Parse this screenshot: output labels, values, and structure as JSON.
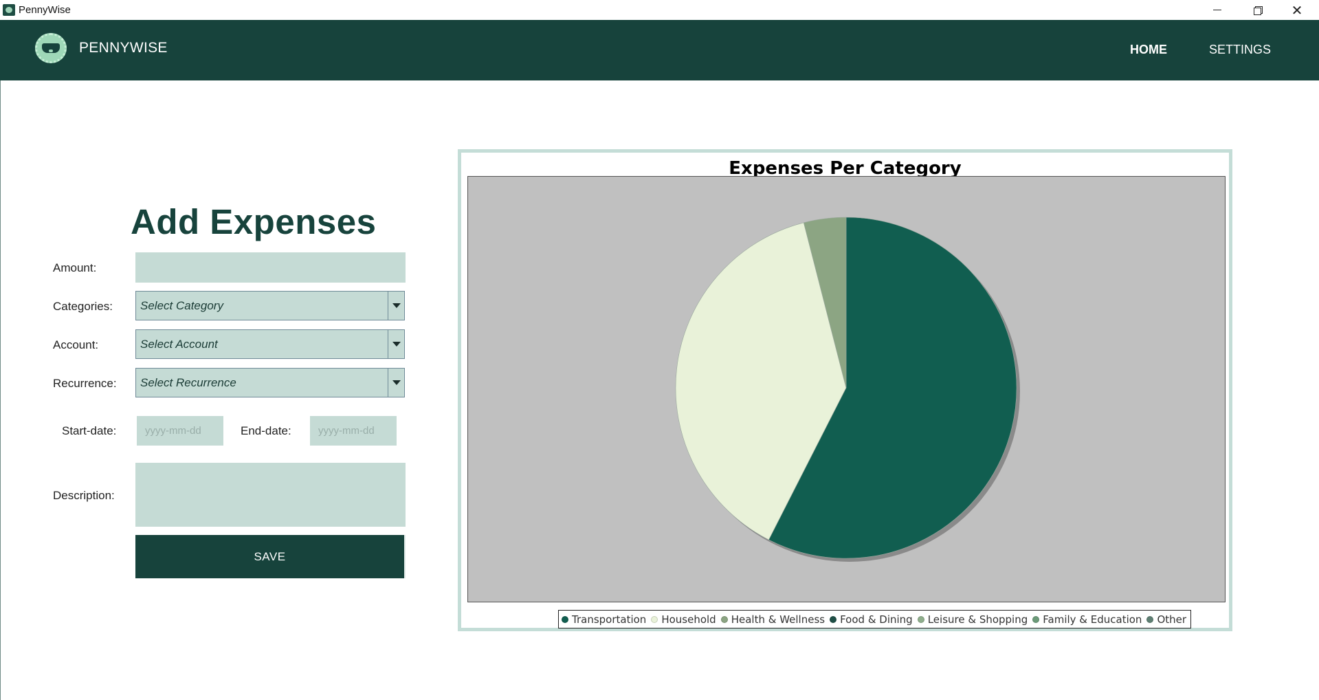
{
  "window": {
    "title": "PennyWise",
    "minimize": "—",
    "close": "✕"
  },
  "header": {
    "brand": "PENNYWISE",
    "nav": [
      "HOME",
      "SETTINGS"
    ]
  },
  "form": {
    "title": "Add Expenses",
    "amount_label": "Amount:",
    "amount_value": "",
    "categories_label": "Categories:",
    "categories_value": "Select Category",
    "account_label": "Account:",
    "account_value": "Select Account",
    "recurrence_label": "Recurrence:",
    "recurrence_value": "Select Recurrence",
    "start_date_label": "Start-date:",
    "start_date_placeholder": "yyyy-mm-dd",
    "end_date_label": "End-date:",
    "end_date_placeholder": "yyyy-mm-dd",
    "description_label": "Description:",
    "description_value": "",
    "save_label": "SAVE"
  },
  "chart_data": {
    "type": "pie",
    "title": "Expenses Per Category",
    "slices": [
      {
        "name": "Transportation",
        "value": 57.5,
        "color": "#115e50"
      },
      {
        "name": "Household",
        "value": 38.5,
        "color": "#e9f2d9"
      },
      {
        "name": "Health & Wellness",
        "value": 4.0,
        "color": "#8ca583"
      },
      {
        "name": "Food & Dining",
        "value": 0,
        "color": "#1f4f46"
      },
      {
        "name": "Leisure & Shopping",
        "value": 0,
        "color": "#8fae8c"
      },
      {
        "name": "Family & Education",
        "value": 0,
        "color": "#6c9b79"
      },
      {
        "name": "Other",
        "value": 0,
        "color": "#5e7f73"
      }
    ],
    "legend_position": "bottom",
    "plot_background": "#c0c0c0"
  }
}
